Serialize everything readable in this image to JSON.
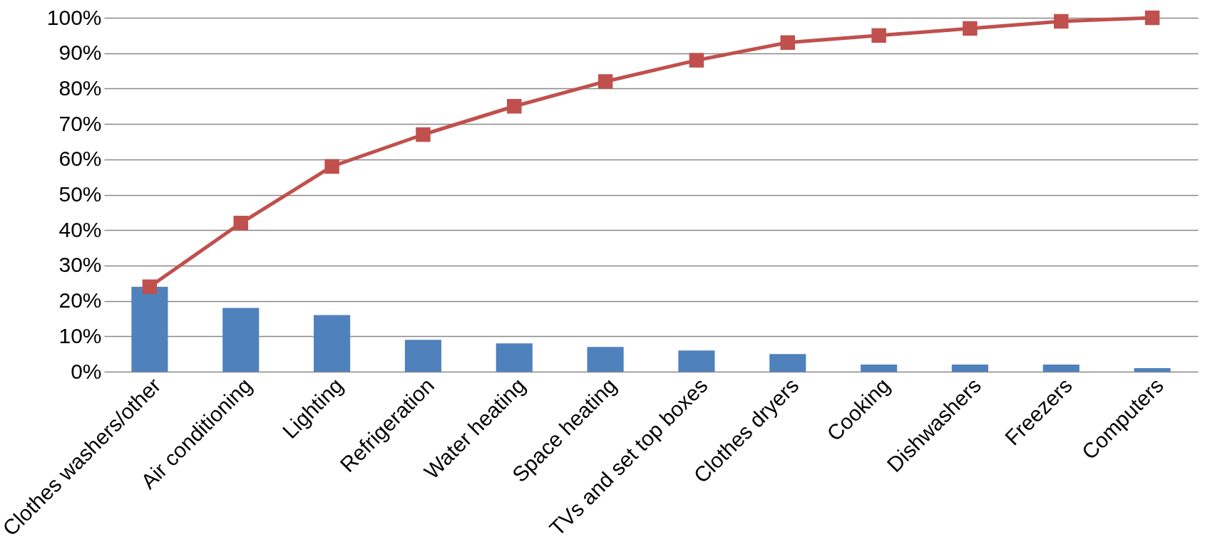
{
  "chart_data": {
    "type": "bar",
    "categories": [
      "Clothes washers/other",
      "Air conditioning",
      "Lighting",
      "Refrigeration",
      "Water heating",
      "Space heating",
      "TVs and set top boxes",
      "Clothes dryers",
      "Cooking",
      "Dishwashers",
      "Freezers",
      "Computers"
    ],
    "series": [
      {
        "color": "#4f81bd",
        "values": [
          24,
          18,
          16,
          9,
          8,
          7,
          6,
          5,
          2,
          2,
          2,
          1
        ]
      },
      {
        "type": "line",
        "color": "#c0504d",
        "marker": "square",
        "values": [
          24,
          42,
          58,
          67,
          75,
          82,
          88,
          93,
          95,
          97,
          99,
          100
        ]
      }
    ],
    "ylim": [
      0,
      100
    ],
    "yticks": [
      {
        "value": 0,
        "label": "0%"
      },
      {
        "value": 10,
        "label": "10%"
      },
      {
        "value": 20,
        "label": "20%"
      },
      {
        "value": 30,
        "label": "30%"
      },
      {
        "value": 40,
        "label": "40%"
      },
      {
        "value": 50,
        "label": "50%"
      },
      {
        "value": 60,
        "label": "60%"
      },
      {
        "value": 70,
        "label": "70%"
      },
      {
        "value": 80,
        "label": "80%"
      },
      {
        "value": 90,
        "label": "90%"
      },
      {
        "value": 100,
        "label": "100%"
      }
    ],
    "grid": "y"
  }
}
